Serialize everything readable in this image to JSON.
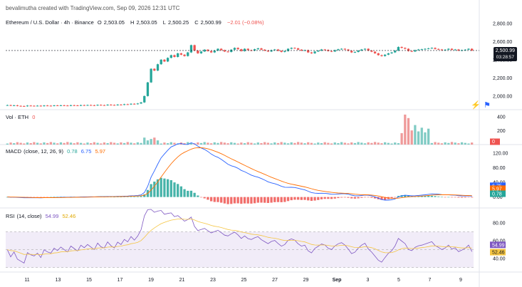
{
  "header": {
    "credit": "bevalimutha created with TradingView.com, Sep 09, 2026 12:31 UTC",
    "symbol": "Ethereum / U.S. Dollar · 4h · Binance",
    "open_label": "O",
    "open": "2,503.05",
    "high_label": "H",
    "high": "2,503.05",
    "low_label": "L",
    "low": "2,500.25",
    "close_label": "C",
    "close": "2,500.99",
    "change": "−2.01 (−0.08%)"
  },
  "colors": {
    "up": "#26a69a",
    "down": "#ef5350",
    "macd": "#2962ff",
    "signal": "#ff6d00",
    "rsi": "#7e57c2",
    "rsi_ma": "#f5c542"
  },
  "chart_data": [
    {
      "type": "candlestick",
      "title": "Ethereum / U.S. Dollar · 4h · Binance",
      "x_ticks": [
        "11",
        "13",
        "15",
        "17",
        "19",
        "21",
        "23",
        "25",
        "27",
        "29",
        "Sep",
        "3",
        "5",
        "7",
        "9"
      ],
      "y_ticks": [
        "2,800.00",
        "2,600.00",
        "2,400.00",
        "2,200.00",
        "2,000.00"
      ],
      "ylim": [
        1850,
        2900
      ],
      "last_price": "2,500.99",
      "countdown": "03:28:57",
      "close_series": [
        1900,
        1895,
        1898,
        1892,
        1890,
        1888,
        1895,
        1893,
        1892,
        1894,
        1890,
        1896,
        1894,
        1893,
        1897,
        1895,
        1898,
        1896,
        1894,
        1899,
        1897,
        1895,
        1900,
        1898,
        1901,
        1899,
        1897,
        1903,
        1900,
        1899,
        1905,
        1902,
        1900,
        1906,
        1904,
        1910,
        1908,
        1915,
        1912,
        1918,
        1930,
        2000,
        2150,
        2300,
        2280,
        2350,
        2400,
        2380,
        2420,
        2450,
        2430,
        2470,
        2455,
        2440,
        2480,
        2560,
        2500,
        2470,
        2490,
        2510,
        2495,
        2480,
        2500,
        2520,
        2505,
        2490,
        2485,
        2510,
        2530,
        2515,
        2495,
        2520,
        2505,
        2500,
        2515,
        2525,
        2510,
        2500,
        2490,
        2505,
        2512,
        2498,
        2485,
        2495,
        2520,
        2530,
        2525,
        2510,
        2500,
        2505,
        2480,
        2470,
        2490,
        2500,
        2512,
        2508,
        2495,
        2490,
        2505,
        2515,
        2520,
        2512,
        2498,
        2480,
        2485,
        2500,
        2512,
        2520,
        2500,
        2488,
        2470,
        2450,
        2440,
        2455,
        2470,
        2480,
        2500,
        2540,
        2530,
        2520,
        2495,
        2490,
        2505,
        2512,
        2515,
        2520,
        2525,
        2530,
        2518,
        2512,
        2505,
        2510,
        2520,
        2508,
        2512,
        2500,
        2505,
        2510,
        2520,
        2501
      ]
    },
    {
      "type": "bar",
      "title": "Vol · ETH",
      "value_label": "0",
      "y_ticks": [
        "400",
        "200"
      ],
      "ylim": [
        0,
        480
      ],
      "spikes": [
        {
          "index": 0.83,
          "value": 430
        },
        {
          "index": 0.845,
          "value": 380
        },
        {
          "index": 0.86,
          "value": 280
        }
      ]
    },
    {
      "type": "line",
      "title": "MACD",
      "params": "(close, 12, 26, 9)",
      "values": [
        "0.78",
        "6.75",
        "5.97"
      ],
      "y_ticks": [
        "120.00",
        "80.00",
        "40.00",
        "0.00"
      ],
      "ylim": [
        -30,
        140
      ]
    },
    {
      "type": "line",
      "title": "RSI",
      "params": "(14, close)",
      "values": [
        "54.99",
        "52.46"
      ],
      "y_ticks": [
        "80.00",
        "60.00",
        "40.00"
      ],
      "ylim": [
        25,
        95
      ],
      "bands": [
        30,
        70
      ]
    }
  ]
}
